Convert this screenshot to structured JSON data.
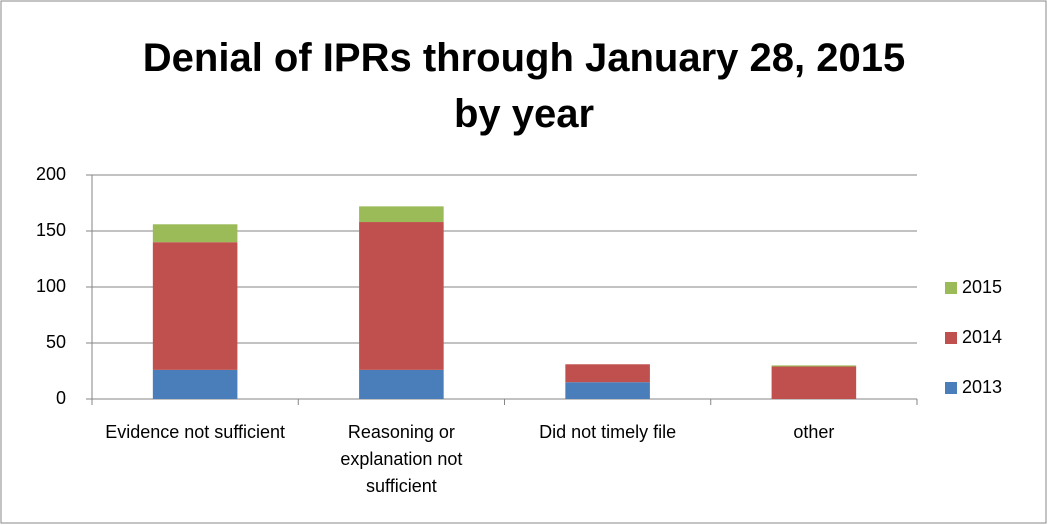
{
  "chart_data": {
    "type": "stacked_bar",
    "title": "Denial of IPRs through January 28, 2015\nby year",
    "categories": [
      "Evidence not sufficient",
      "Reasoning or explanation not sufficient",
      "Did not timely file",
      "other"
    ],
    "series": [
      {
        "name": "2013",
        "color": "#4a7ebb",
        "values": [
          26,
          26,
          15,
          0
        ]
      },
      {
        "name": "2014",
        "color": "#c0504d",
        "values": [
          114,
          132,
          16,
          29
        ]
      },
      {
        "name": "2015",
        "color": "#9bbb59",
        "values": [
          16,
          14,
          0,
          1
        ]
      }
    ],
    "ylim": [
      0,
      200
    ],
    "yticks": [
      0,
      50,
      100,
      150,
      200
    ],
    "grid": true,
    "legend": "right"
  }
}
